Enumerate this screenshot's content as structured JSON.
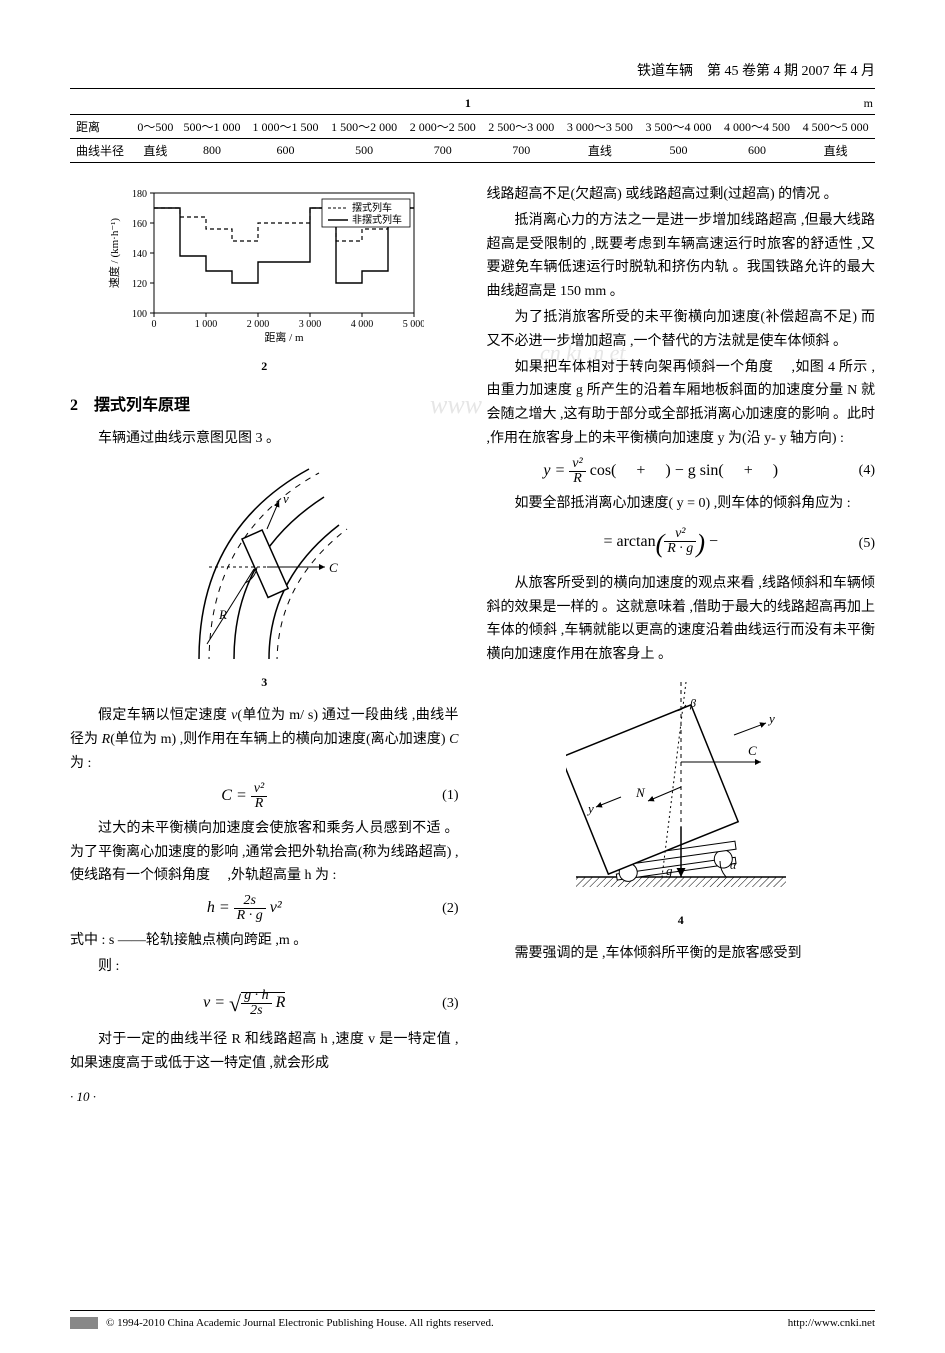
{
  "page": {
    "running_head": "铁道车辆　第 45 卷第 4 期 2007 年 4 月",
    "page_number": "· 10 ·"
  },
  "table1": {
    "caption_center": "1",
    "caption_right": "m",
    "row_labels": [
      "距离",
      "曲线半径"
    ],
    "distance_cells": [
      "0～500",
      "500～1 000",
      "1 000～1 500",
      "1 500～2 000",
      "2 000～2 500",
      "2 500～3 000",
      "3 000～3 500",
      "3 500～4 000",
      "4 000～4 500",
      "4 500～5 000"
    ],
    "radius_cells": [
      "直线",
      "800",
      "600",
      "500",
      "700",
      "700",
      "直线",
      "500",
      "600",
      "直线"
    ]
  },
  "chart": {
    "type": "line-step",
    "x_label": "距离 / m",
    "y_label": "速度 / (km·h⁻¹)",
    "xlim": [
      0,
      5000
    ],
    "ylim": [
      100,
      180
    ],
    "x_ticks": [
      0,
      1000,
      2000,
      3000,
      4000,
      5000
    ],
    "y_ticks": [
      100,
      120,
      140,
      160,
      180
    ],
    "legend": [
      "摆式列车",
      "非摆式列车"
    ],
    "legend_styles": [
      "dashed",
      "solid"
    ],
    "background_color": "#ffffff",
    "grid": false,
    "axis_color": "#000000",
    "tilting_points": [
      [
        0,
        170
      ],
      [
        500,
        170
      ],
      [
        500,
        164
      ],
      [
        1000,
        164
      ],
      [
        1000,
        156
      ],
      [
        1500,
        156
      ],
      [
        1500,
        148
      ],
      [
        2000,
        148
      ],
      [
        2000,
        160
      ],
      [
        2500,
        160
      ],
      [
        2500,
        160
      ],
      [
        3000,
        160
      ],
      [
        3000,
        170
      ],
      [
        3500,
        170
      ],
      [
        3500,
        148
      ],
      [
        4000,
        148
      ],
      [
        4000,
        156
      ],
      [
        4500,
        156
      ],
      [
        4500,
        170
      ],
      [
        5000,
        170
      ]
    ],
    "nontilting_points": [
      [
        0,
        170
      ],
      [
        0,
        170
      ],
      [
        500,
        170
      ],
      [
        500,
        138
      ],
      [
        1000,
        138
      ],
      [
        1000,
        128
      ],
      [
        1500,
        128
      ],
      [
        1500,
        120
      ],
      [
        2000,
        120
      ],
      [
        2000,
        134
      ],
      [
        2500,
        134
      ],
      [
        2500,
        134
      ],
      [
        3000,
        134
      ],
      [
        3000,
        170
      ],
      [
        3500,
        170
      ],
      [
        3500,
        120
      ],
      [
        4000,
        120
      ],
      [
        4000,
        128
      ],
      [
        4500,
        128
      ],
      [
        4500,
        170
      ],
      [
        5000,
        170
      ]
    ],
    "caption": "2"
  },
  "section2": {
    "title": "2　摆式列车原理",
    "p1": "车辆通过曲线示意图见图 3 。"
  },
  "fig3": {
    "caption": "3",
    "labels": {
      "v": "v",
      "C": "C",
      "R": "R"
    }
  },
  "left_body": {
    "p2a": "假定车辆以恒定速度 ",
    "p2v": "v",
    "p2b": "(单位为 m/ s) 通过一段曲线 ,曲线半径为 ",
    "p2R": "R",
    "p2c": "(单位为 m) ,则作用在车辆上的横向加速度(离心加速度) ",
    "p2C": "C",
    "p2d": " 为 :",
    "p3": "过大的未平衡横向加速度会使旅客和乘务人员感到不适 。为了平衡离心加速度的影响 ,通常会把外轨抬高(称为线路超高) ,使线路有一个倾斜角度 　,外轨超高量 h 为 :",
    "p4": "式中 : s ——轮轨接触点横向跨距 ,m 。",
    "p5": "则 :",
    "p6": "对于一定的曲线半径 R 和线路超高 h ,速度 v 是一特定值 ,如果速度高于或低于这一特定值 ,就会形成"
  },
  "eqs": {
    "eq1_num": "v²",
    "eq1_den": "R",
    "eq1_lhs": "C = ",
    "eq1_n": "(1)",
    "eq2_lhs": "h = ",
    "eq2_num": "2s",
    "eq2_den": "R · g",
    "eq2_tail": " v²",
    "eq2_n": "(2)",
    "eq3_lhs": "v = ",
    "eq3_num": "g · h",
    "eq3_den": "2s",
    "eq3_tail": " R",
    "eq3_n": "(3)",
    "eq4_lhs": "y = ",
    "eq4_num": "v²",
    "eq4_den": "R",
    "eq4_mid": " cos( 　+ 　) − g sin( 　+ 　)",
    "eq4_n": "(4)",
    "eq5_lhs": " = arctan",
    "eq5_num": "v²",
    "eq5_den": "R · g",
    "eq5_tail": " − ",
    "eq5_n": "(5)"
  },
  "right_body": {
    "p1": "线路超高不足(欠超高) 或线路超高过剩(过超高) 的情况 。",
    "p2": "抵消离心力的方法之一是进一步增加线路超高 ,但最大线路超高是受限制的 ,既要考虑到车辆高速运行时旅客的舒适性 ,又要避免车辆低速运行时脱轨和挤伤内轨 。我国铁路允许的最大曲线超高是 150 mm 。",
    "p3": "为了抵消旅客所受的未平衡横向加速度(补偿超高不足) 而又不必进一步增加超高 ,一个替代的方法就是使车体倾斜 。",
    "p4": "如果把车体相对于转向架再倾斜一个角度 　,如图 4 所示 ,由重力加速度 g 所产生的沿着车厢地板斜面的加速度分量 N 就会随之增大 ,这有助于部分或全部抵消离心加速度的影响 。此时 ,作用在旅客身上的未平衡横向加速度 y 为(沿 y- y 轴方向) :",
    "p5": "如要全部抵消离心加速度( y = 0) ,则车体的倾斜角应为 :",
    "p6": "从旅客所受到的横向加速度的观点来看 ,线路倾斜和车辆倾斜的效果是一样的 。这就意味着 ,借助于最大的线路超高再加上车体的倾斜 ,车辆就能以更高的速度沿着曲线运行而没有未平衡横向加速度作用在旅客身上 。",
    "p7": "需要强调的是 ,车体倾斜所平衡的是旅客感受到"
  },
  "fig4": {
    "caption": "4",
    "labels": {
      "y1": "y",
      "y2": "y",
      "C": "C",
      "N": "N",
      "g": "g",
      "beta": "β",
      "alpha": "α"
    }
  },
  "footer": {
    "copyright": "© 1994-2010 China Academic Journal Electronic Publishing House. All rights reserved.",
    "url": "http://www.cnki.net"
  }
}
